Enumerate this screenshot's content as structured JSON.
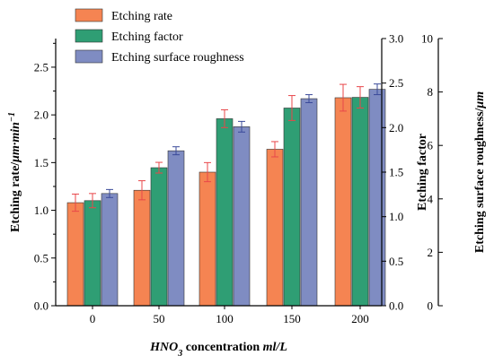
{
  "chart_data": {
    "type": "bar",
    "categories": [
      "0",
      "50",
      "100",
      "150",
      "200"
    ],
    "xlabel": {
      "parts": [
        {
          "text": "HNO",
          "style": "italic"
        },
        {
          "text": "3",
          "style": "italic-sub"
        },
        {
          "text": " concentration ",
          "style": "normal"
        },
        {
          "text": "ml/L",
          "style": "italic"
        }
      ]
    },
    "axes": {
      "left": {
        "label_parts": [
          {
            "text": "Etching rate/",
            "style": "normal"
          },
          {
            "text": "μm·min",
            "style": "italic"
          },
          {
            "text": "−1",
            "style": "italic-sup"
          }
        ],
        "ylim": [
          0,
          2.8
        ],
        "ticks": [
          "0.0",
          "0.5",
          "1.0",
          "1.5",
          "2.0",
          "2.5"
        ]
      },
      "right1": {
        "label_parts": [
          {
            "text": "Etching factor",
            "style": "normal"
          }
        ],
        "ylim": [
          0,
          3.0
        ],
        "ticks": [
          "0.0",
          "0.5",
          "1.0",
          "1.5",
          "2.0",
          "2.5",
          "3.0"
        ]
      },
      "right2": {
        "label_parts": [
          {
            "text": "Etching surface roughness/",
            "style": "normal"
          },
          {
            "text": "μm",
            "style": "italic"
          }
        ],
        "ylim": [
          0,
          10
        ],
        "ticks": [
          "0",
          "2",
          "4",
          "6",
          "8",
          "10"
        ]
      }
    },
    "series": [
      {
        "name": "Etching rate",
        "axis": "left",
        "color": "#f58452",
        "error_color": "#e8474a",
        "values": [
          1.08,
          1.21,
          1.4,
          1.64,
          2.18
        ],
        "errors": [
          0.09,
          0.1,
          0.1,
          0.08,
          0.14
        ]
      },
      {
        "name": "Etching factor",
        "axis": "right1",
        "color": "#2f9e74",
        "error_color": "#e8474a",
        "values": [
          1.18,
          1.55,
          2.1,
          2.22,
          2.34
        ],
        "errors": [
          0.08,
          0.06,
          0.1,
          0.14,
          0.12
        ]
      },
      {
        "name": "Etching surface roughness",
        "axis": "right2",
        "color": "#7f8cc2",
        "error_color": "#3a4a9a",
        "values": [
          4.2,
          5.8,
          6.7,
          7.75,
          8.1
        ],
        "errors": [
          0.15,
          0.15,
          0.2,
          0.15,
          0.2
        ]
      }
    ],
    "legend": {
      "position": "top-left"
    }
  }
}
